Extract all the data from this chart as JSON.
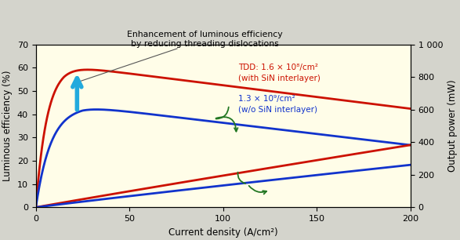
{
  "title_annotation_line1": "Enhancement of luminous efficiency",
  "title_annotation_line2": "by reducing threading dislocations",
  "xlabel": "Current density (A/cm²)",
  "ylabel_left": "Luminous efficiency (%)",
  "ylabel_right": "Output power (mW)",
  "xlim": [
    0,
    200
  ],
  "ylim_left": [
    0,
    70
  ],
  "ylim_right": [
    0,
    1000
  ],
  "xticks": [
    0,
    50,
    100,
    150,
    200
  ],
  "yticks_left": [
    0,
    10,
    20,
    30,
    40,
    50,
    60,
    70
  ],
  "yticks_right": [
    0,
    200,
    400,
    600,
    800,
    1000
  ],
  "bg_color": "#fffde8",
  "outer_bg": "#d4d4cc",
  "red_label_line1": "TDD: 1.6 × 10⁸/cm²",
  "red_label_line2": "(with SiN interlayer)",
  "blue_label_line1": "1.3 × 10⁹/cm²",
  "blue_label_line2": "(w/o SiN interlayer)",
  "red_color": "#cc1100",
  "blue_color": "#1133cc",
  "green_color": "#227722",
  "arrow_color": "#22aadd"
}
